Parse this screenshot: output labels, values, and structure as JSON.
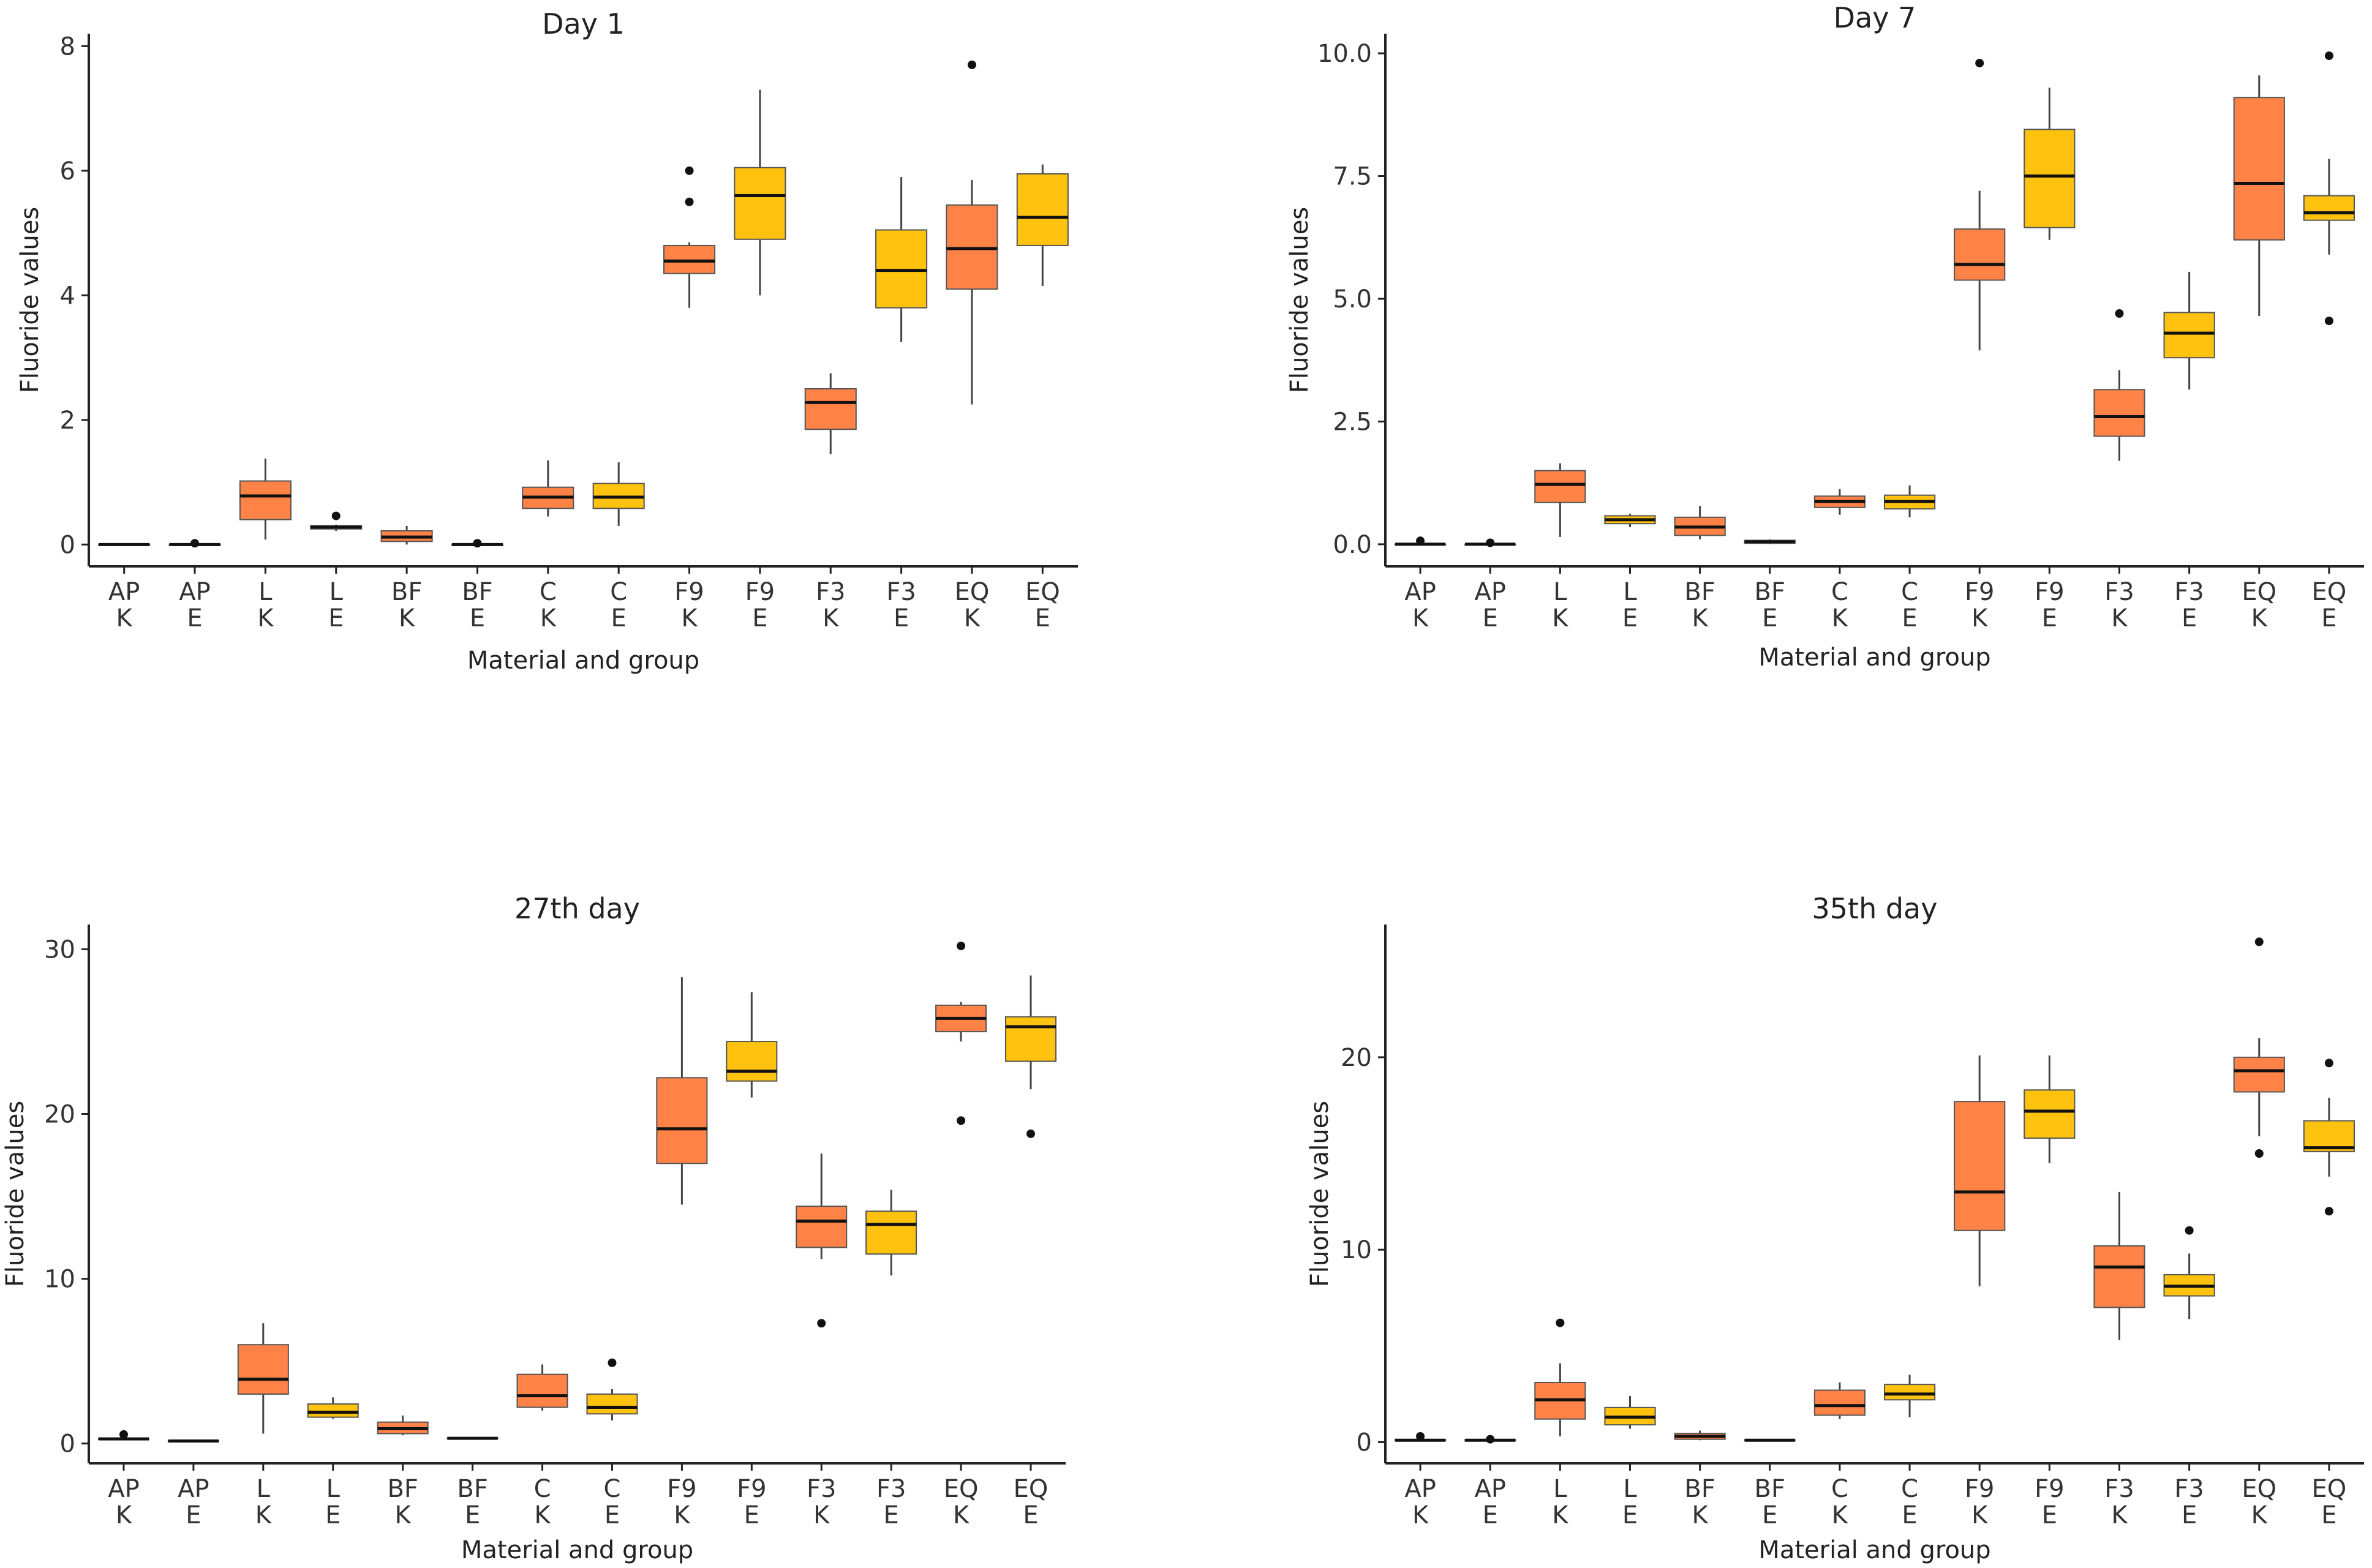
{
  "figure": {
    "description_label": "Fluoride release boxplots"
  },
  "colors": {
    "K": "#FF8247",
    "E": "#FFC20E",
    "median": "#111111",
    "whisker": "#444444",
    "axis": "#222222"
  },
  "chart_data": [
    {
      "type": "boxplot",
      "title": "Day 1",
      "xlabel": "Material and group",
      "ylabel": "Fluoride values",
      "ylim": [
        -0.35,
        8.2
      ],
      "yticks": [
        0,
        2,
        4,
        6,
        8
      ],
      "ytick_labels": [
        "0",
        "2",
        "4",
        "6",
        "8"
      ],
      "categories": [
        {
          "material": "AP",
          "group": "K",
          "min": 0.0,
          "q1": 0.0,
          "median": 0.0,
          "q3": 0.0,
          "max": 0.0,
          "outliers": []
        },
        {
          "material": "AP",
          "group": "E",
          "min": 0.0,
          "q1": 0.0,
          "median": 0.0,
          "q3": 0.0,
          "max": 0.0,
          "outliers": [
            0.02
          ]
        },
        {
          "material": "L",
          "group": "K",
          "min": 0.08,
          "q1": 0.4,
          "median": 0.78,
          "q3": 1.02,
          "max": 1.38,
          "outliers": []
        },
        {
          "material": "L",
          "group": "E",
          "min": 0.22,
          "q1": 0.25,
          "median": 0.28,
          "q3": 0.3,
          "max": 0.32,
          "outliers": [
            0.46
          ]
        },
        {
          "material": "BF",
          "group": "K",
          "min": 0.0,
          "q1": 0.05,
          "median": 0.12,
          "q3": 0.22,
          "max": 0.3,
          "outliers": []
        },
        {
          "material": "BF",
          "group": "E",
          "min": 0.0,
          "q1": 0.0,
          "median": 0.0,
          "q3": 0.0,
          "max": 0.0,
          "outliers": [
            0.02
          ]
        },
        {
          "material": "C",
          "group": "K",
          "min": 0.45,
          "q1": 0.58,
          "median": 0.76,
          "q3": 0.92,
          "max": 1.35,
          "outliers": []
        },
        {
          "material": "C",
          "group": "E",
          "min": 0.3,
          "q1": 0.58,
          "median": 0.76,
          "q3": 0.98,
          "max": 1.32,
          "outliers": []
        },
        {
          "material": "F9",
          "group": "K",
          "min": 3.8,
          "q1": 4.35,
          "median": 4.55,
          "q3": 4.8,
          "max": 4.85,
          "outliers": [
            5.5,
            6.0
          ]
        },
        {
          "material": "F9",
          "group": "E",
          "min": 4.0,
          "q1": 4.9,
          "median": 5.6,
          "q3": 6.05,
          "max": 7.3,
          "outliers": []
        },
        {
          "material": "F3",
          "group": "K",
          "min": 1.45,
          "q1": 1.85,
          "median": 2.28,
          "q3": 2.5,
          "max": 2.75,
          "outliers": []
        },
        {
          "material": "F3",
          "group": "E",
          "min": 3.25,
          "q1": 3.8,
          "median": 4.4,
          "q3": 5.05,
          "max": 5.9,
          "outliers": []
        },
        {
          "material": "EQ",
          "group": "K",
          "min": 2.25,
          "q1": 4.1,
          "median": 4.75,
          "q3": 5.45,
          "max": 5.85,
          "outliers": [
            7.7
          ]
        },
        {
          "material": "EQ",
          "group": "E",
          "min": 4.15,
          "q1": 4.8,
          "median": 5.25,
          "q3": 5.95,
          "max": 6.1,
          "outliers": []
        }
      ]
    },
    {
      "type": "boxplot",
      "title": "Day 7",
      "xlabel": "Material and group",
      "ylabel": "Fluoride values",
      "ylim": [
        -0.45,
        10.4
      ],
      "yticks": [
        0,
        2.5,
        5,
        7.5,
        10
      ],
      "ytick_labels": [
        "0.0",
        "2.5",
        "5.0",
        "7.5",
        "10.0"
      ],
      "categories": [
        {
          "material": "AP",
          "group": "K",
          "min": 0.0,
          "q1": 0.0,
          "median": 0.0,
          "q3": 0.0,
          "max": 0.0,
          "outliers": [
            0.07
          ]
        },
        {
          "material": "AP",
          "group": "E",
          "min": 0.0,
          "q1": 0.0,
          "median": 0.0,
          "q3": 0.0,
          "max": 0.0,
          "outliers": [
            0.03
          ]
        },
        {
          "material": "L",
          "group": "K",
          "min": 0.15,
          "q1": 0.85,
          "median": 1.22,
          "q3": 1.5,
          "max": 1.65,
          "outliers": []
        },
        {
          "material": "L",
          "group": "E",
          "min": 0.35,
          "q1": 0.42,
          "median": 0.5,
          "q3": 0.58,
          "max": 0.62,
          "outliers": []
        },
        {
          "material": "BF",
          "group": "K",
          "min": 0.1,
          "q1": 0.18,
          "median": 0.35,
          "q3": 0.55,
          "max": 0.78,
          "outliers": []
        },
        {
          "material": "BF",
          "group": "E",
          "min": 0.0,
          "q1": 0.02,
          "median": 0.05,
          "q3": 0.08,
          "max": 0.1,
          "outliers": []
        },
        {
          "material": "C",
          "group": "K",
          "min": 0.6,
          "q1": 0.75,
          "median": 0.87,
          "q3": 0.98,
          "max": 1.12,
          "outliers": []
        },
        {
          "material": "C",
          "group": "E",
          "min": 0.55,
          "q1": 0.72,
          "median": 0.87,
          "q3": 1.0,
          "max": 1.2,
          "outliers": []
        },
        {
          "material": "F9",
          "group": "K",
          "min": 3.95,
          "q1": 5.38,
          "median": 5.7,
          "q3": 6.42,
          "max": 7.2,
          "outliers": [
            9.8
          ]
        },
        {
          "material": "F9",
          "group": "E",
          "min": 6.2,
          "q1": 6.45,
          "median": 7.5,
          "q3": 8.45,
          "max": 9.3,
          "outliers": []
        },
        {
          "material": "F3",
          "group": "K",
          "min": 1.7,
          "q1": 2.2,
          "median": 2.6,
          "q3": 3.15,
          "max": 3.55,
          "outliers": [
            4.7
          ]
        },
        {
          "material": "F3",
          "group": "E",
          "min": 3.15,
          "q1": 3.8,
          "median": 4.3,
          "q3": 4.72,
          "max": 5.55,
          "outliers": []
        },
        {
          "material": "EQ",
          "group": "K",
          "min": 4.65,
          "q1": 6.2,
          "median": 7.35,
          "q3": 9.1,
          "max": 9.55,
          "outliers": []
        },
        {
          "material": "EQ",
          "group": "E",
          "min": 5.9,
          "q1": 6.6,
          "median": 6.75,
          "q3": 7.1,
          "max": 7.85,
          "outliers": [
            4.55,
            9.95
          ]
        }
      ]
    },
    {
      "type": "boxplot",
      "title": "27th day",
      "xlabel": "Material and group",
      "ylabel": "Fluoride values",
      "ylim": [
        -1.2,
        31.5
      ],
      "yticks": [
        0,
        10,
        20,
        30
      ],
      "ytick_labels": [
        "0",
        "10",
        "20",
        "30"
      ],
      "categories": [
        {
          "material": "AP",
          "group": "K",
          "min": 0.2,
          "q1": 0.25,
          "median": 0.28,
          "q3": 0.3,
          "max": 0.32,
          "outliers": [
            0.55
          ]
        },
        {
          "material": "AP",
          "group": "E",
          "min": 0.1,
          "q1": 0.12,
          "median": 0.15,
          "q3": 0.18,
          "max": 0.2,
          "outliers": []
        },
        {
          "material": "L",
          "group": "K",
          "min": 0.6,
          "q1": 3.0,
          "median": 3.9,
          "q3": 6.0,
          "max": 7.3,
          "outliers": []
        },
        {
          "material": "L",
          "group": "E",
          "min": 1.5,
          "q1": 1.6,
          "median": 1.9,
          "q3": 2.4,
          "max": 2.8,
          "outliers": []
        },
        {
          "material": "BF",
          "group": "K",
          "min": 0.5,
          "q1": 0.6,
          "median": 0.9,
          "q3": 1.3,
          "max": 1.7,
          "outliers": []
        },
        {
          "material": "BF",
          "group": "E",
          "min": 0.25,
          "q1": 0.28,
          "median": 0.32,
          "q3": 0.35,
          "max": 0.38,
          "outliers": []
        },
        {
          "material": "C",
          "group": "K",
          "min": 2.0,
          "q1": 2.2,
          "median": 2.9,
          "q3": 4.2,
          "max": 4.8,
          "outliers": []
        },
        {
          "material": "C",
          "group": "E",
          "min": 1.4,
          "q1": 1.8,
          "median": 2.2,
          "q3": 3.0,
          "max": 3.3,
          "outliers": [
            4.9
          ]
        },
        {
          "material": "F9",
          "group": "K",
          "min": 14.5,
          "q1": 17.0,
          "median": 19.1,
          "q3": 22.2,
          "max": 28.3,
          "outliers": []
        },
        {
          "material": "F9",
          "group": "E",
          "min": 21.0,
          "q1": 22.0,
          "median": 22.6,
          "q3": 24.4,
          "max": 27.4,
          "outliers": []
        },
        {
          "material": "F3",
          "group": "K",
          "min": 11.2,
          "q1": 11.9,
          "median": 13.5,
          "q3": 14.4,
          "max": 17.6,
          "outliers": [
            7.3
          ]
        },
        {
          "material": "F3",
          "group": "E",
          "min": 10.2,
          "q1": 11.5,
          "median": 13.3,
          "q3": 14.1,
          "max": 15.4,
          "outliers": []
        },
        {
          "material": "EQ",
          "group": "K",
          "min": 24.4,
          "q1": 25.0,
          "median": 25.8,
          "q3": 26.6,
          "max": 26.8,
          "outliers": [
            19.6,
            30.2
          ]
        },
        {
          "material": "EQ",
          "group": "E",
          "min": 21.5,
          "q1": 23.2,
          "median": 25.3,
          "q3": 25.9,
          "max": 28.4,
          "outliers": [
            18.8
          ]
        }
      ]
    },
    {
      "type": "boxplot",
      "title": "35th day",
      "xlabel": "Material and group",
      "ylabel": "Fluoride values",
      "ylim": [
        -1.1,
        26.9
      ],
      "yticks": [
        0,
        10,
        20
      ],
      "ytick_labels": [
        "0",
        "10",
        "20"
      ],
      "categories": [
        {
          "material": "AP",
          "group": "K",
          "min": 0.05,
          "q1": 0.08,
          "median": 0.1,
          "q3": 0.12,
          "max": 0.15,
          "outliers": [
            0.3
          ]
        },
        {
          "material": "AP",
          "group": "E",
          "min": 0.05,
          "q1": 0.07,
          "median": 0.1,
          "q3": 0.12,
          "max": 0.15,
          "outliers": [
            0.15
          ]
        },
        {
          "material": "L",
          "group": "K",
          "min": 0.3,
          "q1": 1.2,
          "median": 2.2,
          "q3": 3.1,
          "max": 4.1,
          "outliers": [
            6.2
          ]
        },
        {
          "material": "L",
          "group": "E",
          "min": 0.7,
          "q1": 0.9,
          "median": 1.3,
          "q3": 1.8,
          "max": 2.4,
          "outliers": []
        },
        {
          "material": "BF",
          "group": "K",
          "min": 0.1,
          "q1": 0.15,
          "median": 0.3,
          "q3": 0.45,
          "max": 0.6,
          "outliers": []
        },
        {
          "material": "BF",
          "group": "E",
          "min": 0.08,
          "q1": 0.09,
          "median": 0.1,
          "q3": 0.11,
          "max": 0.12,
          "outliers": []
        },
        {
          "material": "C",
          "group": "K",
          "min": 1.2,
          "q1": 1.4,
          "median": 1.9,
          "q3": 2.7,
          "max": 3.1,
          "outliers": []
        },
        {
          "material": "C",
          "group": "E",
          "min": 1.3,
          "q1": 2.2,
          "median": 2.5,
          "q3": 3.0,
          "max": 3.5,
          "outliers": []
        },
        {
          "material": "F9",
          "group": "K",
          "min": 8.1,
          "q1": 11.0,
          "median": 13.0,
          "q3": 17.7,
          "max": 20.1,
          "outliers": []
        },
        {
          "material": "F9",
          "group": "E",
          "min": 14.5,
          "q1": 15.8,
          "median": 17.2,
          "q3": 18.3,
          "max": 20.1,
          "outliers": []
        },
        {
          "material": "F3",
          "group": "K",
          "min": 5.3,
          "q1": 7.0,
          "median": 9.1,
          "q3": 10.2,
          "max": 13.0,
          "outliers": []
        },
        {
          "material": "F3",
          "group": "E",
          "min": 6.4,
          "q1": 7.6,
          "median": 8.1,
          "q3": 8.7,
          "max": 9.8,
          "outliers": [
            11.0
          ]
        },
        {
          "material": "EQ",
          "group": "K",
          "min": 15.9,
          "q1": 18.2,
          "median": 19.3,
          "q3": 20.0,
          "max": 21.0,
          "outliers": [
            15.0,
            26.0
          ]
        },
        {
          "material": "EQ",
          "group": "E",
          "min": 13.8,
          "q1": 15.1,
          "median": 15.3,
          "q3": 16.7,
          "max": 17.9,
          "outliers": [
            12.0,
            19.7
          ]
        }
      ]
    }
  ]
}
